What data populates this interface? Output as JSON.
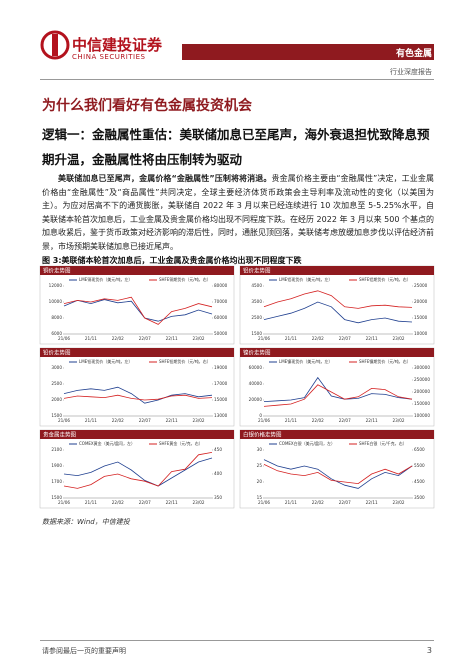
{
  "header": {
    "logo": "中信建投证券",
    "logo_en": "CHINA SECURITIES",
    "sector": "有色金属",
    "report_type": "行业深度报告"
  },
  "section_title": "为什么我们看好有色金属投资机会",
  "heading": "逻辑一：金融属性重估：美联储加息已至尾声，海外衰退担忧致降息预期升温，金融属性将由压制转为驱动",
  "paragraph": {
    "lead": "美联储加息已至尾声，金属价格“金融属性”压制将将消退。",
    "body": "贵金属价格主要由“金融属性”决定，工业金属价格由“金融属性”及“商品属性”共同决定，全球主要经济体货币政策会主导利率及流动性的变化（以美国为主）。为应对居高不下的通货膨胀，美联储自 2022 年 3 月以来已经连续进行 10 次加息至 5-5.25%水平，自美联储本轮首次加息后，工业金属及贵金属价格均出现不同程度下跌。在经历 2022 年 3 月以来 500 个基点的加息收紧后，鉴于货币政策对经济影响的滞后性，同时，通胀见顶回落，美联储考虑放缓加息步伐以评估经济前景，市场预期美联储加息已接近尾声。"
  },
  "figure": {
    "caption": "图 3:美联储本轮首次加息后，工业金属及贵金属价格均出现不同程度下跌",
    "charts": [
      {
        "type": "line",
        "title": "铜价走势图",
        "categories": [
          "21/06",
          null,
          "21/11",
          null,
          "22/02",
          null,
          "22/07",
          null,
          "22/11",
          null,
          "23/02",
          null
        ],
        "ylim": [
          6000,
          12000
        ],
        "yticks": [
          6000,
          8000,
          10000,
          12000
        ],
        "y2lim": [
          50000,
          80000
        ],
        "y2ticks": [
          50000,
          60000,
          70000,
          80000
        ],
        "series": [
          {
            "name": "LME铜现货价（美元/吨，左）",
            "color": "#1f3f8f",
            "axis": "y",
            "values": [
              9500,
              10200,
              9800,
              10300,
              9900,
              10100,
              8000,
              7600,
              8200,
              8400,
              9000,
              8500
            ]
          },
          {
            "name": "SHFE铜期货价（元/吨，右）",
            "color": "#d42020",
            "axis": "y2",
            "values": [
              69000,
              71000,
              70000,
              72000,
              71000,
              73000,
              60000,
              56000,
              64000,
              66000,
              69000,
              67000
            ]
          }
        ]
      },
      {
        "type": "line",
        "title": "铝价走势图",
        "categories": [
          "21/06",
          null,
          "21/11",
          null,
          "22/02",
          null,
          "22/07",
          null,
          "22/11",
          null,
          "23/02",
          null
        ],
        "ylim": [
          1500,
          4500
        ],
        "yticks": [
          1500,
          2500,
          3500,
          4500
        ],
        "y2lim": [
          10000,
          25000
        ],
        "y2ticks": [
          10000,
          15000,
          20000,
          25000
        ],
        "series": [
          {
            "name": "LME铝现货价（美元/吨，左）",
            "color": "#1f3f8f",
            "axis": "y",
            "values": [
              2400,
              2600,
              2800,
              3100,
              3500,
              3200,
              2400,
              2200,
              2400,
              2500,
              2300,
              2250
            ]
          },
          {
            "name": "SHFE铝期货价（元/吨，右）",
            "color": "#d42020",
            "axis": "y2",
            "values": [
              18500,
              20000,
              21000,
              22500,
              23500,
              22000,
              18500,
              18000,
              18800,
              19000,
              18500,
              18300
            ]
          }
        ]
      },
      {
        "type": "line",
        "title": "铅价走势图",
        "categories": [
          "21/06",
          null,
          "21/11",
          null,
          "22/02",
          null,
          "22/07",
          null,
          "22/11",
          null,
          "23/02",
          null
        ],
        "ylim": [
          1500,
          3000
        ],
        "yticks": [
          1500,
          2000,
          2500,
          3000
        ],
        "y2lim": [
          13000,
          19000
        ],
        "y2ticks": [
          13000,
          15000,
          17000,
          19000
        ],
        "series": [
          {
            "name": "LME铅现货价（美元/吨，左）",
            "color": "#1f3f8f",
            "axis": "y",
            "values": [
              2200,
              2300,
              2350,
              2300,
              2400,
              2200,
              1900,
              2000,
              2150,
              2200,
              2100,
              2150
            ]
          },
          {
            "name": "SHFE铅期货价（元/吨，右）",
            "color": "#d42020",
            "axis": "y2",
            "values": [
              15200,
              15500,
              15400,
              15300,
              15600,
              15200,
              15000,
              15100,
              15500,
              15600,
              15200,
              15300
            ]
          }
        ]
      },
      {
        "type": "line",
        "title": "镍价走势图",
        "categories": [
          "21/06",
          null,
          "21/11",
          null,
          "22/02",
          null,
          "22/07",
          null,
          "22/11",
          null,
          "23/02",
          null
        ],
        "ylim": [
          0,
          60000
        ],
        "yticks": [
          0,
          20000,
          40000,
          60000
        ],
        "y2lim": [
          100000,
          300000
        ],
        "y2ticks": [
          100000,
          150000,
          200000,
          250000,
          300000
        ],
        "series": [
          {
            "name": "LME镍现货价（美元/吨，左）",
            "color": "#1f3f8f",
            "axis": "y",
            "values": [
              18000,
              19000,
              20000,
              23000,
              48000,
              25000,
              21000,
              22000,
              28000,
              27000,
              23000,
              21000
            ]
          },
          {
            "name": "SHFE镍期货价（元/吨，右）",
            "color": "#d42020",
            "axis": "y2",
            "values": [
              140000,
              145000,
              150000,
              170000,
              230000,
              200000,
              170000,
              180000,
              215000,
              210000,
              180000,
              170000
            ]
          }
        ]
      },
      {
        "type": "line",
        "title": "贵金属走势图",
        "categories": [
          "21/06",
          null,
          "21/11",
          null,
          "22/02",
          null,
          "22/07",
          null,
          "22/11",
          null,
          "23/02",
          null
        ],
        "ylim": [
          1500,
          2100
        ],
        "yticks": [
          1500,
          1700,
          1900,
          2100
        ],
        "y2lim": [
          350,
          450
        ],
        "y2ticks": [
          350,
          400,
          450
        ],
        "series": [
          {
            "name": "COMEX黄金（美元/盎司，左）",
            "color": "#1f3f8f",
            "axis": "y",
            "values": [
              1800,
              1780,
              1820,
              1900,
              1950,
              1850,
              1720,
              1650,
              1750,
              1850,
              1950,
              2000
            ]
          },
          {
            "name": "SHFE黄金（元/克，右）",
            "color": "#d42020",
            "axis": "y2",
            "values": [
              375,
              370,
              378,
              395,
              400,
              390,
              385,
              375,
              405,
              410,
              440,
              445
            ]
          }
        ]
      },
      {
        "type": "line",
        "title": "白银价格走势图",
        "categories": [
          "21/06",
          null,
          "21/11",
          null,
          "22/02",
          null,
          "22/07",
          null,
          "22/11",
          null,
          "23/02",
          null
        ],
        "ylim": [
          15,
          30
        ],
        "yticks": [
          15,
          20,
          25,
          30
        ],
        "y2lim": [
          3500,
          6500
        ],
        "y2ticks": [
          3500,
          4500,
          5500,
          6500
        ],
        "series": [
          {
            "name": "COMEX白银（美元/盎司，左）",
            "color": "#1f3f8f",
            "axis": "y",
            "values": [
              27,
              25,
              24,
              25,
              24,
              21,
              19,
              18,
              21,
              23,
              22,
              25
            ]
          },
          {
            "name": "SHFE白银（元/千克，右）",
            "color": "#d42020",
            "axis": "y2",
            "values": [
              5600,
              5200,
              5000,
              4900,
              5100,
              4600,
              4500,
              4400,
              5000,
              5300,
              5000,
              5500
            ]
          }
        ]
      }
    ],
    "source": "数据来源：Wind，中信建投"
  },
  "footer": {
    "note": "请参阅最后一页的重要声明",
    "page": "3"
  }
}
